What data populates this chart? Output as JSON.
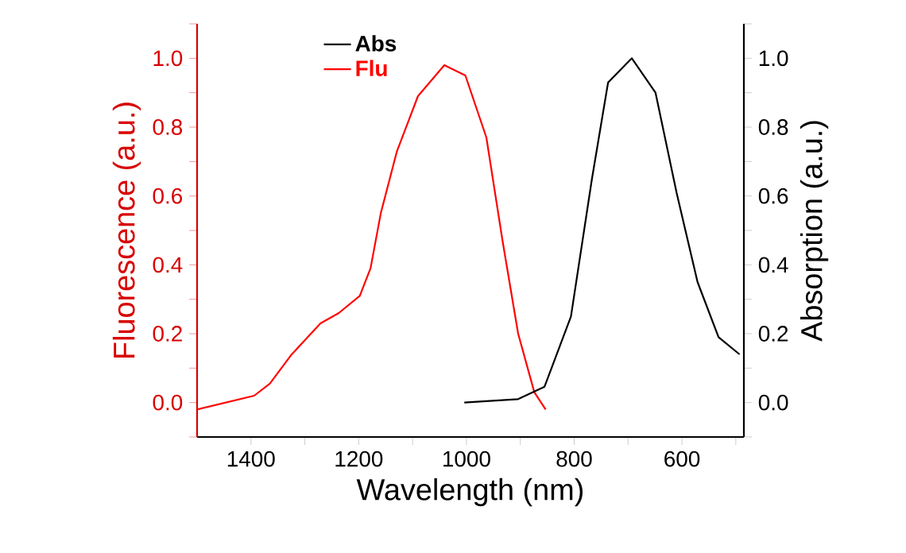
{
  "chart_data": {
    "type": "line",
    "xlabel": "Wavelength (nm)",
    "ylabel": "Fluorescence (a.u.)",
    "y2label": "Absorption (a.u.)",
    "xlim": [
      1500,
      485
    ],
    "ylim": [
      -0.1,
      1.1
    ],
    "y2lim": [
      -0.1,
      1.1
    ],
    "xticks": [
      {
        "value": 1400,
        "label": "1400"
      },
      {
        "value": 1300,
        "label": null
      },
      {
        "value": 1200,
        "label": "1200"
      },
      {
        "value": 1100,
        "label": null
      },
      {
        "value": 1000,
        "label": "1000"
      },
      {
        "value": 900,
        "label": null
      },
      {
        "value": 800,
        "label": "800"
      },
      {
        "value": 700,
        "label": null
      },
      {
        "value": 600,
        "label": "600"
      },
      {
        "value": 500,
        "label": null
      }
    ],
    "yticks": [
      {
        "value": -0.1,
        "label": null
      },
      {
        "value": 0,
        "label": "0.0"
      },
      {
        "value": 0.1,
        "label": null
      },
      {
        "value": 0.2,
        "label": "0.2"
      },
      {
        "value": 0.3,
        "label": null
      },
      {
        "value": 0.4,
        "label": "0.4"
      },
      {
        "value": 0.5,
        "label": null
      },
      {
        "value": 0.6,
        "label": "0.6"
      },
      {
        "value": 0.7,
        "label": null
      },
      {
        "value": 0.8,
        "label": "0.8"
      },
      {
        "value": 0.9,
        "label": null
      },
      {
        "value": 1.0,
        "label": "1.0"
      },
      {
        "value": 1.1,
        "label": null
      }
    ],
    "y2ticks": [
      {
        "value": -0.1,
        "label": null
      },
      {
        "value": 0,
        "label": "0.0"
      },
      {
        "value": 0.1,
        "label": null
      },
      {
        "value": 0.2,
        "label": "0.2"
      },
      {
        "value": 0.3,
        "label": null
      },
      {
        "value": 0.4,
        "label": "0.4"
      },
      {
        "value": 0.5,
        "label": null
      },
      {
        "value": 0.6,
        "label": "0.6"
      },
      {
        "value": 0.7,
        "label": null
      },
      {
        "value": 0.8,
        "label": "0.8"
      },
      {
        "value": 0.9,
        "label": null
      },
      {
        "value": 1.0,
        "label": "1.0"
      },
      {
        "value": 1.1,
        "label": null
      }
    ],
    "legend": "top left",
    "grid": false,
    "marker": "none",
    "line_style": "solid",
    "series": [
      {
        "name": "Abs",
        "color": "#000000",
        "axis": "y2",
        "x": [
          1004,
          904,
          855,
          806,
          767,
          737,
          693,
          649,
          610,
          571,
          532,
          493
        ],
        "values": [
          0.0,
          0.01,
          0.046,
          0.25,
          0.65,
          0.93,
          1.0,
          0.9,
          0.61,
          0.35,
          0.19,
          0.14
        ]
      },
      {
        "name": "Flu",
        "color": "#ff0000",
        "axis": "y",
        "x": [
          1500,
          1394,
          1365,
          1326,
          1271,
          1237,
          1198,
          1178,
          1159,
          1129,
          1090,
          1041,
          1002,
          963,
          933,
          904,
          874,
          853
        ],
        "values": [
          -0.02,
          0.02,
          0.055,
          0.137,
          0.23,
          0.26,
          0.31,
          0.39,
          0.55,
          0.73,
          0.89,
          0.98,
          0.95,
          0.77,
          0.47,
          0.2,
          0.03,
          -0.02
        ]
      }
    ]
  }
}
